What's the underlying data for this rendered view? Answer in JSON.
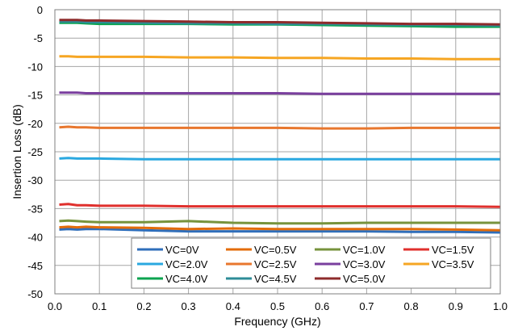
{
  "chart_data": {
    "type": "line",
    "title": "",
    "xlabel": "Frequency (GHz)",
    "ylabel": "Insertion Loss (dB)",
    "xlim": [
      0.0,
      1.0
    ],
    "ylim": [
      -50,
      0
    ],
    "x_ticks": [
      "0.0",
      "0.1",
      "0.2",
      "0.3",
      "0.4",
      "0.5",
      "0.6",
      "0.7",
      "0.8",
      "0.9",
      "1.0"
    ],
    "y_ticks": [
      "0",
      "-5",
      "-10",
      "-15",
      "-20",
      "-25",
      "-30",
      "-35",
      "-40",
      "-45",
      "-50"
    ],
    "grid": true,
    "legend_position": "bottom-right",
    "x": [
      0.01,
      0.03,
      0.05,
      0.07,
      0.1,
      0.2,
      0.3,
      0.4,
      0.5,
      0.6,
      0.7,
      0.8,
      0.9,
      1.0
    ],
    "series": [
      {
        "name": "VC=0V",
        "color": "#2f6eba",
        "values": [
          -38.7,
          -38.6,
          -38.7,
          -38.6,
          -38.6,
          -38.8,
          -39.0,
          -39.0,
          -39.0,
          -39.0,
          -39.0,
          -39.1,
          -39.1,
          -39.2
        ]
      },
      {
        "name": "VC=0.5V",
        "color": "#e36c0a",
        "values": [
          -38.3,
          -38.2,
          -38.3,
          -38.2,
          -38.3,
          -38.4,
          -38.6,
          -38.5,
          -38.6,
          -38.6,
          -38.6,
          -38.6,
          -38.7,
          -38.8
        ]
      },
      {
        "name": "VC=1.0V",
        "color": "#77933c",
        "values": [
          -37.2,
          -37.1,
          -37.2,
          -37.3,
          -37.4,
          -37.4,
          -37.2,
          -37.5,
          -37.6,
          -37.6,
          -37.5,
          -37.5,
          -37.5,
          -37.5
        ]
      },
      {
        "name": "VC=1.5V",
        "color": "#e0302d",
        "values": [
          -34.3,
          -34.2,
          -34.4,
          -34.4,
          -34.5,
          -34.5,
          -34.6,
          -34.6,
          -34.6,
          -34.6,
          -34.6,
          -34.6,
          -34.6,
          -34.7
        ]
      },
      {
        "name": "VC=2.0V",
        "color": "#2aa8e0",
        "values": [
          -26.2,
          -26.1,
          -26.2,
          -26.2,
          -26.2,
          -26.3,
          -26.3,
          -26.3,
          -26.3,
          -26.3,
          -26.3,
          -26.3,
          -26.3,
          -26.3
        ]
      },
      {
        "name": "VC=2.5V",
        "color": "#e8772e",
        "values": [
          -20.7,
          -20.6,
          -20.7,
          -20.7,
          -20.8,
          -20.8,
          -20.8,
          -20.8,
          -20.8,
          -20.9,
          -20.9,
          -20.8,
          -20.8,
          -20.8
        ]
      },
      {
        "name": "VC=3.0V",
        "color": "#7a3f9e",
        "values": [
          -14.6,
          -14.6,
          -14.6,
          -14.7,
          -14.7,
          -14.7,
          -14.7,
          -14.7,
          -14.7,
          -14.8,
          -14.8,
          -14.8,
          -14.8,
          -14.8
        ]
      },
      {
        "name": "VC=3.5V",
        "color": "#f6a623",
        "values": [
          -8.2,
          -8.2,
          -8.3,
          -8.3,
          -8.3,
          -8.3,
          -8.4,
          -8.4,
          -8.5,
          -8.5,
          -8.6,
          -8.6,
          -8.7,
          -8.7
        ]
      },
      {
        "name": "VC=4.0V",
        "color": "#0aa34f",
        "values": [
          -2.3,
          -2.3,
          -2.3,
          -2.4,
          -2.5,
          -2.5,
          -2.5,
          -2.6,
          -2.6,
          -2.7,
          -2.8,
          -2.9,
          -3.0,
          -3.0
        ]
      },
      {
        "name": "VC=4.5V",
        "color": "#2e8c97",
        "values": [
          -2.1,
          -2.1,
          -2.1,
          -2.2,
          -2.2,
          -2.3,
          -2.4,
          -2.4,
          -2.5,
          -2.5,
          -2.6,
          -2.7,
          -2.7,
          -2.8
        ]
      },
      {
        "name": "VC=5.0V",
        "color": "#8e2b2b",
        "values": [
          -1.8,
          -1.8,
          -1.8,
          -1.9,
          -1.9,
          -2.0,
          -2.1,
          -2.2,
          -2.2,
          -2.3,
          -2.4,
          -2.5,
          -2.5,
          -2.6
        ]
      }
    ]
  }
}
